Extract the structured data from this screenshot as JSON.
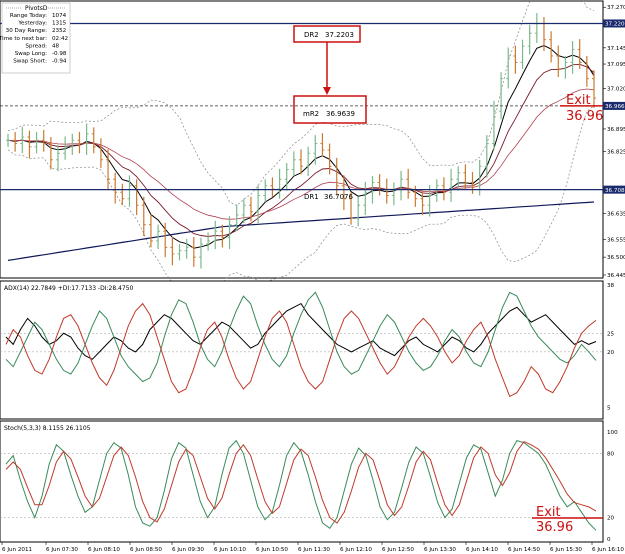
{
  "info_box": {
    "title": "PivotsD",
    "rows": [
      {
        "label": "Range  Today:",
        "value": "1074"
      },
      {
        "label": "Yesterday:",
        "value": "1315"
      },
      {
        "label": "30 Day Range:",
        "value": "2352"
      },
      {
        "label": "Time to next bar:",
        "value": "02:42"
      },
      {
        "label": "Spread:",
        "value": "48"
      },
      {
        "label": "Swap  Long:",
        "value": "-0.98"
      },
      {
        "label": "Swap  Short:",
        "value": "-0.94"
      }
    ]
  },
  "pivots": {
    "dr2": {
      "label": "DR2",
      "value": "37.2203",
      "price": 37.22
    },
    "mr2": {
      "label": "mR2",
      "value": "36.9639",
      "price": 36.966
    },
    "dr1": {
      "label": "DR1",
      "value": "36.7076",
      "price": 36.708
    }
  },
  "price_tags": [
    {
      "text": "37.220",
      "price": 37.22,
      "color": "#1a2a6c"
    },
    {
      "text": "36.966",
      "price": 36.966,
      "color": "#1a2a6c"
    },
    {
      "text": "36.708",
      "price": 36.708,
      "color": "#1a2a6c"
    }
  ],
  "exit_labels": {
    "main": {
      "word": "Exit",
      "value": "36.96"
    },
    "stoch": {
      "word": "Exit",
      "value": "36.96"
    }
  },
  "colors": {
    "up_bar": "#7cb98a",
    "down_bar": "#c97a2e",
    "pivot_line": "#1a2a6c",
    "annotation": "#cc1111",
    "bands": "#888888",
    "adx_green": "#3a8a5a",
    "adx_red": "#c0392b",
    "stoch_main": "#3a8a5a",
    "stoch_signal": "#c0392b"
  },
  "chart_data": [
    {
      "type": "candlestick",
      "y_ticks": [
        "37.270",
        "37.220",
        "37.145",
        "37.095",
        "37.020",
        "36.966",
        "36.895",
        "36.825",
        "36.708",
        "36.635",
        "36.555",
        "36.500",
        "36.445"
      ],
      "ylim": [
        36.445,
        37.28
      ],
      "x_ticks": [
        "6 Jun 2011",
        "6 Jun 07:30",
        "6 Jun 08:10",
        "6 Jun 08:50",
        "6 Jun 09:30",
        "6 Jun 10:10",
        "6 Jun 10:50",
        "6 Jun 11:30",
        "6 Jun 12:10",
        "6 Jun 12:50",
        "6 Jun 13:30",
        "6 Jun 14:10",
        "6 Jun 14:50",
        "6 Jun 15:30",
        "6 Jun 16:10"
      ],
      "close": [
        36.86,
        36.85,
        36.87,
        36.84,
        36.86,
        36.85,
        36.8,
        36.82,
        36.84,
        36.86,
        36.85,
        36.88,
        36.84,
        36.8,
        36.74,
        36.7,
        36.68,
        36.72,
        36.66,
        36.6,
        36.55,
        36.58,
        36.53,
        36.51,
        36.52,
        36.53,
        36.5,
        36.54,
        36.55,
        36.58,
        36.56,
        36.6,
        36.63,
        36.66,
        36.64,
        36.69,
        36.72,
        36.71,
        36.74,
        36.77,
        36.8,
        36.78,
        36.82,
        36.85,
        36.83,
        36.78,
        36.72,
        36.68,
        36.62,
        36.66,
        36.7,
        36.73,
        36.71,
        36.69,
        36.71,
        36.74,
        36.7,
        36.68,
        36.66,
        36.69,
        36.72,
        36.7,
        36.74,
        36.76,
        36.73,
        36.72,
        36.78,
        36.85,
        36.95,
        37.05,
        37.12,
        37.1,
        37.15,
        37.19,
        37.22,
        37.17,
        37.12,
        37.08,
        37.1,
        37.14,
        37.1,
        37.05,
        36.99
      ],
      "indicators": [
        "Bollinger bands",
        "moving averages",
        "daily pivot lines"
      ]
    },
    {
      "type": "line",
      "title": "ADX(14) 22.7849 +DI:17.7133 -DI:28.4750",
      "y_ticks": [
        "38",
        "25",
        "20",
        "5"
      ],
      "ylim": [
        3,
        38
      ],
      "series": [
        {
          "name": "ADX",
          "values": [
            24,
            22,
            26,
            29,
            27,
            24,
            22,
            23,
            25,
            24,
            21,
            19,
            18,
            20,
            22,
            24,
            23,
            21,
            20,
            22,
            26,
            28,
            30,
            29,
            27,
            25,
            23,
            22,
            24,
            26,
            28,
            27,
            25,
            23,
            21,
            22,
            25,
            27,
            29,
            31,
            32,
            33,
            30,
            28,
            26,
            24,
            22,
            21,
            20,
            21,
            22,
            23,
            21,
            20,
            19,
            21,
            23,
            24,
            22,
            21,
            20,
            22,
            24,
            23,
            21,
            20,
            22,
            25,
            27,
            29,
            31,
            32,
            30,
            28,
            29,
            30,
            28,
            26,
            24,
            22,
            23,
            22,
            22.78
          ]
        },
        {
          "name": "+DI",
          "values": [
            18,
            16,
            20,
            24,
            28,
            26,
            22,
            18,
            15,
            14,
            17,
            22,
            27,
            31,
            29,
            24,
            19,
            16,
            14,
            12,
            13,
            17,
            24,
            30,
            34,
            33,
            28,
            22,
            18,
            16,
            20,
            26,
            31,
            35,
            33,
            27,
            22,
            18,
            16,
            19,
            25,
            30,
            34,
            36,
            32,
            26,
            20,
            16,
            14,
            15,
            19,
            23,
            27,
            30,
            28,
            24,
            20,
            17,
            15,
            16,
            19,
            23,
            26,
            24,
            20,
            17,
            16,
            20,
            26,
            32,
            36,
            35,
            31,
            27,
            24,
            22,
            20,
            18,
            17,
            19,
            22,
            20,
            17.71
          ]
        },
        {
          "name": "-DI",
          "values": [
            22,
            26,
            24,
            19,
            15,
            14,
            18,
            24,
            29,
            30,
            27,
            22,
            17,
            13,
            11,
            15,
            21,
            27,
            31,
            33,
            30,
            24,
            18,
            12,
            9,
            10,
            15,
            21,
            26,
            28,
            24,
            18,
            13,
            10,
            12,
            18,
            24,
            29,
            31,
            28,
            22,
            16,
            12,
            10,
            12,
            18,
            24,
            29,
            31,
            29,
            25,
            21,
            17,
            14,
            16,
            20,
            24,
            27,
            29,
            27,
            24,
            20,
            17,
            19,
            23,
            26,
            28,
            24,
            18,
            13,
            8,
            9,
            12,
            16,
            14,
            10,
            9,
            12,
            16,
            21,
            25,
            27,
            28.48
          ]
        }
      ]
    },
    {
      "type": "line",
      "title": "Stoch(5,3,3) 8.1155 26.1105",
      "y_ticks": [
        "100",
        "80",
        "20",
        "0"
      ],
      "ylim": [
        0,
        100
      ],
      "series": [
        {
          "name": "Main",
          "values": [
            70,
            78,
            55,
            35,
            20,
            40,
            70,
            88,
            82,
            60,
            40,
            25,
            30,
            55,
            80,
            90,
            85,
            60,
            30,
            15,
            12,
            20,
            45,
            75,
            90,
            85,
            60,
            35,
            20,
            30,
            60,
            85,
            92,
            80,
            55,
            30,
            18,
            25,
            50,
            78,
            90,
            82,
            60,
            35,
            15,
            10,
            20,
            45,
            70,
            85,
            78,
            55,
            30,
            18,
            25,
            48,
            72,
            86,
            80,
            58,
            34,
            20,
            28,
            52,
            76,
            88,
            84,
            62,
            40,
            55,
            80,
            92,
            90,
            85,
            80,
            70,
            55,
            40,
            30,
            35,
            25,
            15,
            8.12
          ]
        },
        {
          "name": "Signal",
          "values": [
            65,
            72,
            65,
            48,
            32,
            32,
            50,
            72,
            82,
            75,
            58,
            40,
            30,
            38,
            58,
            78,
            86,
            78,
            58,
            35,
            20,
            16,
            28,
            50,
            72,
            84,
            78,
            58,
            38,
            28,
            38,
            60,
            80,
            88,
            78,
            56,
            35,
            24,
            30,
            52,
            74,
            84,
            78,
            58,
            36,
            20,
            15,
            25,
            45,
            67,
            80,
            74,
            54,
            32,
            22,
            30,
            50,
            72,
            82,
            74,
            52,
            32,
            22,
            32,
            54,
            76,
            86,
            80,
            60,
            50,
            62,
            82,
            91,
            88,
            84,
            76,
            65,
            54,
            42,
            34,
            32,
            30,
            26.11
          ]
        }
      ]
    }
  ]
}
